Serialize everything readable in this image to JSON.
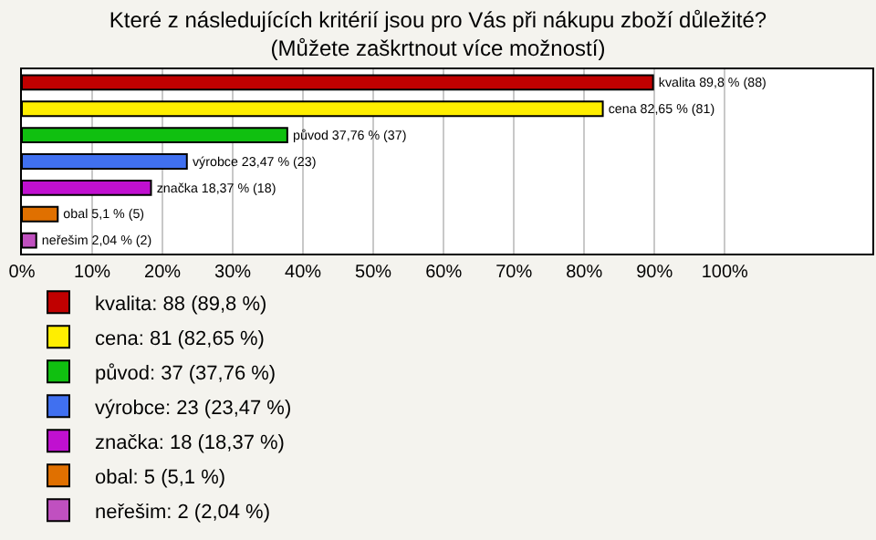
{
  "chart_data": {
    "type": "bar",
    "orientation": "horizontal",
    "title": "Které z následujících kritérií jsou pro Vás při nákupu zboží důležité?\n(Můžete zaškrtnout více možností)",
    "categories": [
      null,
      null,
      null,
      null,
      null,
      null,
      null
    ],
    "series": [
      {
        "name": "kvalita: 88 (89,8 %)",
        "color": "#c00000",
        "values": [
          89.8,
          null,
          null,
          null,
          null,
          null,
          null
        ],
        "value_labels": [
          "kvalita 89,8 % (88)",
          null,
          null,
          null,
          null,
          null,
          null
        ]
      },
      {
        "name": "cena: 81 (82,65 %)",
        "color": "#ffee00",
        "values": [
          null,
          82.65,
          null,
          null,
          null,
          null,
          null
        ],
        "value_labels": [
          null,
          "cena 82,65 % (81)",
          null,
          null,
          null,
          null,
          null
        ]
      },
      {
        "name": "původ: 37 (37,76 %)",
        "color": "#10c010",
        "values": [
          null,
          null,
          37.76,
          null,
          null,
          null,
          null
        ],
        "value_labels": [
          null,
          null,
          "původ 37,76 % (37)",
          null,
          null,
          null,
          null
        ]
      },
      {
        "name": "výrobce: 23 (23,47 %)",
        "color": "#4070f0",
        "values": [
          null,
          null,
          null,
          23.47,
          null,
          null,
          null
        ],
        "value_labels": [
          null,
          null,
          null,
          "výrobce 23,47 % (23)",
          null,
          null,
          null
        ]
      },
      {
        "name": "značka: 18 (18,37 %)",
        "color": "#c010d0",
        "values": [
          null,
          null,
          null,
          null,
          18.37,
          null,
          null
        ],
        "value_labels": [
          null,
          null,
          null,
          null,
          "značka 18,37 % (18)",
          null,
          null
        ]
      },
      {
        "name": "obal: 5 (5,1 %)",
        "color": "#e07000",
        "values": [
          null,
          null,
          null,
          null,
          null,
          5.1,
          null
        ],
        "value_labels": [
          null,
          null,
          null,
          null,
          null,
          "obal 5,1 % (5)",
          null
        ]
      },
      {
        "name": "neřešim: 2 (2,04 %)",
        "color": "#c050c0",
        "values": [
          null,
          null,
          null,
          null,
          null,
          null,
          2.04
        ],
        "value_labels": [
          null,
          null,
          null,
          null,
          null,
          null,
          "neřešim 2,04 % (2)"
        ]
      }
    ],
    "xlim": [
      0,
      121
    ],
    "xticks": [
      {
        "value": 0,
        "label": "0%"
      },
      {
        "value": 10,
        "label": "10%"
      },
      {
        "value": 20,
        "label": "20%"
      },
      {
        "value": 30,
        "label": "30%"
      },
      {
        "value": 40,
        "label": "40%"
      },
      {
        "value": 50,
        "label": "50%"
      },
      {
        "value": 60,
        "label": "60%"
      },
      {
        "value": 70,
        "label": "70%"
      },
      {
        "value": 80,
        "label": "80%"
      },
      {
        "value": 90,
        "label": "90%"
      },
      {
        "value": 100,
        "label": "100%"
      }
    ],
    "grid": "x",
    "legend": "bottom left",
    "tick_labels": "x"
  }
}
